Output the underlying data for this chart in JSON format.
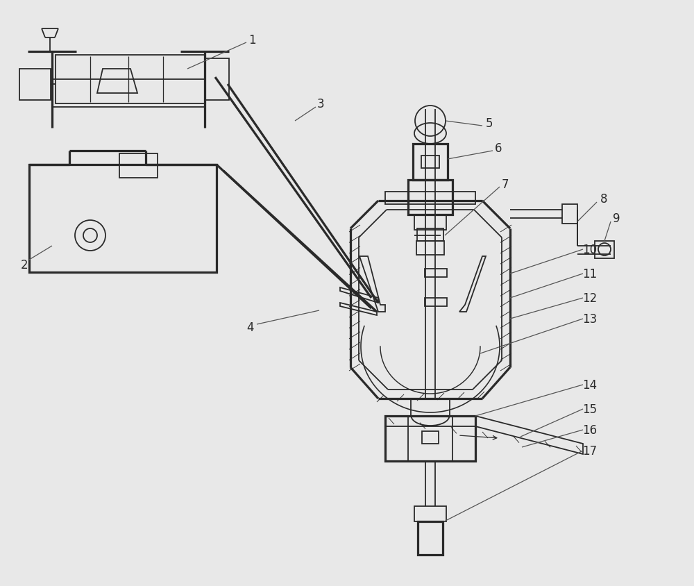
{
  "bg_color": "#e8e8e8",
  "line_color": "#2a2a2a",
  "lw": 1.3,
  "fig_width": 10.0,
  "fig_height": 8.45
}
